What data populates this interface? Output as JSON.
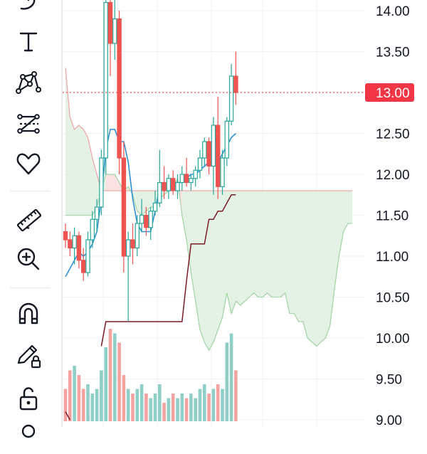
{
  "toolbar": {
    "items": [
      {
        "name": "brush-icon",
        "tooltip": ""
      },
      {
        "name": "text-icon",
        "tooltip": ""
      },
      {
        "name": "pattern-icon",
        "tooltip": ""
      },
      {
        "name": "prediction-icon",
        "tooltip": ""
      },
      {
        "name": "heart-icon",
        "tooltip": ""
      },
      {
        "name": "ruler-icon",
        "tooltip": ""
      },
      {
        "name": "zoom-in-icon",
        "tooltip": ""
      },
      {
        "name": "magnet-icon",
        "tooltip": ""
      },
      {
        "name": "pencil-lock-icon",
        "tooltip": ""
      },
      {
        "name": "unlock-icon",
        "tooltip": ""
      }
    ]
  },
  "colors": {
    "up": "#26a69a",
    "down": "#ef5350",
    "last_price_label_bg": "#f23645",
    "cloud_red": "#fbe1e2",
    "cloud_green": "#e4f2e6",
    "conversion_line": "#2f8fd8",
    "base_line": "#7a1c24"
  },
  "chart_data": {
    "type": "candlestick",
    "title": "",
    "ylim": [
      9.0,
      14.2
    ],
    "y_ticks": [
      "14.00",
      "13.50",
      "13.00",
      "12.50",
      "12.00",
      "11.50",
      "11.00",
      "10.50",
      "10.00",
      "9.50",
      "9.00"
    ],
    "last_price": "13.00",
    "ohlc": [
      [
        11.3,
        11.4,
        11.1,
        11.2
      ],
      [
        11.2,
        11.3,
        11.0,
        11.1
      ],
      [
        11.1,
        11.35,
        10.9,
        11.25
      ],
      [
        11.25,
        11.3,
        10.85,
        10.95
      ],
      [
        10.95,
        11.1,
        10.7,
        10.8
      ],
      [
        10.8,
        11.3,
        10.75,
        11.2
      ],
      [
        11.2,
        11.55,
        11.1,
        11.45
      ],
      [
        11.45,
        11.7,
        11.3,
        11.6
      ],
      [
        11.6,
        12.3,
        11.5,
        12.2
      ],
      [
        12.2,
        14.3,
        12.0,
        14.1
      ],
      [
        14.1,
        14.3,
        13.2,
        13.6
      ],
      [
        13.6,
        14.2,
        13.4,
        13.9
      ],
      [
        13.9,
        14.0,
        12.0,
        12.2
      ],
      [
        12.2,
        12.4,
        10.8,
        11.0
      ],
      [
        11.0,
        11.3,
        10.2,
        11.2
      ],
      [
        11.2,
        11.4,
        10.9,
        11.1
      ],
      [
        11.1,
        11.5,
        11.0,
        11.4
      ],
      [
        11.4,
        11.7,
        11.3,
        11.5
      ],
      [
        11.5,
        11.6,
        11.25,
        11.35
      ],
      [
        11.35,
        11.6,
        11.2,
        11.55
      ],
      [
        11.55,
        11.8,
        11.5,
        11.65
      ],
      [
        11.65,
        12.3,
        11.6,
        11.9
      ],
      [
        11.9,
        12.1,
        11.7,
        11.8
      ],
      [
        11.8,
        12.0,
        11.7,
        11.95
      ],
      [
        11.95,
        12.05,
        11.75,
        11.8
      ],
      [
        11.8,
        12.0,
        11.7,
        11.9
      ],
      [
        11.9,
        12.1,
        11.8,
        12.0
      ],
      [
        12.0,
        12.2,
        11.85,
        11.9
      ],
      [
        11.9,
        12.0,
        11.8,
        11.95
      ],
      [
        11.95,
        12.1,
        11.85,
        12.05
      ],
      [
        12.05,
        12.3,
        11.95,
        12.2
      ],
      [
        12.2,
        12.45,
        12.1,
        12.4
      ],
      [
        12.4,
        12.45,
        12.0,
        12.1
      ],
      [
        12.1,
        12.7,
        11.75,
        12.6
      ],
      [
        12.6,
        12.95,
        11.7,
        11.85
      ],
      [
        11.85,
        12.3,
        11.75,
        12.2
      ],
      [
        12.2,
        12.7,
        12.1,
        12.65
      ],
      [
        12.65,
        13.35,
        12.6,
        13.2
      ],
      [
        13.2,
        13.5,
        12.85,
        13.0
      ]
    ],
    "volume": [
      0.35,
      0.55,
      0.6,
      0.5,
      0.35,
      0.4,
      0.3,
      0.35,
      0.55,
      0.8,
      1.0,
      0.95,
      0.85,
      0.5,
      0.35,
      0.3,
      0.35,
      0.4,
      0.3,
      0.25,
      0.3,
      0.4,
      0.2,
      0.25,
      0.3,
      0.25,
      0.3,
      0.25,
      0.3,
      0.25,
      0.35,
      0.4,
      0.3,
      0.35,
      0.4,
      0.35,
      0.85,
      0.95,
      0.55
    ],
    "conversion_line": [
      10.75,
      10.85,
      10.95,
      11.05,
      11.0,
      11.05,
      11.15,
      11.3,
      11.7,
      12.3,
      12.55,
      12.55,
      12.4,
      12.4,
      12.15,
      11.7,
      11.4,
      11.3,
      11.3,
      11.3,
      11.55,
      11.85,
      11.85,
      11.9,
      11.9,
      11.9,
      11.9,
      11.95,
      12.0,
      12.0,
      12.05,
      12.1,
      12.15,
      12.15,
      12.15,
      12.25,
      12.35,
      12.45,
      12.5
    ],
    "base_line": [
      9.1,
      9.0,
      null,
      null,
      null,
      null,
      null,
      null,
      9.9,
      10.2,
      10.2,
      10.2,
      10.2,
      10.2,
      10.2,
      10.2,
      10.2,
      10.2,
      10.2,
      10.2,
      10.2,
      10.2,
      10.2,
      10.2,
      10.2,
      10.2,
      10.2,
      10.7,
      11.15,
      11.15,
      11.15,
      11.15,
      11.45,
      11.45,
      11.55,
      11.55,
      11.65,
      11.75,
      11.75
    ],
    "cloud": {
      "span_a": [
        13.3,
        12.7,
        12.55,
        12.6,
        12.55,
        12.45,
        12.2,
        12.0,
        11.8,
        11.8,
        11.8,
        11.8,
        11.8,
        11.8,
        11.8,
        11.8,
        11.8,
        11.8,
        11.8,
        11.8,
        11.8,
        11.8,
        11.8,
        11.8,
        11.8,
        11.8,
        11.8,
        11.8,
        11.8,
        11.8,
        11.8,
        11.8,
        11.8,
        11.8,
        11.8,
        11.8,
        11.8,
        11.8,
        11.8,
        11.8,
        11.8,
        11.8,
        11.8,
        11.8,
        11.8,
        11.8,
        11.8,
        11.8,
        11.8,
        11.8,
        11.8,
        11.8,
        11.8,
        11.8,
        11.8,
        11.8,
        11.8,
        11.8,
        11.8,
        11.8,
        11.8,
        11.8,
        11.8,
        11.8,
        11.8
      ],
      "span_b": [
        11.5,
        11.5,
        11.5,
        11.5,
        11.5,
        11.5,
        11.5,
        11.6,
        11.8,
        12.0,
        12.0,
        12.0,
        11.9,
        11.8,
        11.85,
        11.75,
        11.55,
        11.5,
        11.55,
        11.6,
        11.6,
        11.7,
        11.75,
        11.8,
        11.85,
        11.95,
        11.5,
        11.2,
        10.8,
        10.45,
        10.1,
        9.95,
        9.85,
        9.95,
        10.1,
        10.25,
        10.55,
        10.3,
        10.45,
        10.4,
        10.45,
        10.5,
        10.55,
        10.5,
        10.5,
        10.55,
        10.5,
        10.5,
        10.5,
        10.55,
        10.3,
        10.3,
        10.2,
        10.2,
        10.0,
        9.95,
        9.9,
        9.95,
        10.0,
        10.15,
        10.6,
        11.0,
        11.3,
        11.4,
        11.4
      ]
    }
  }
}
